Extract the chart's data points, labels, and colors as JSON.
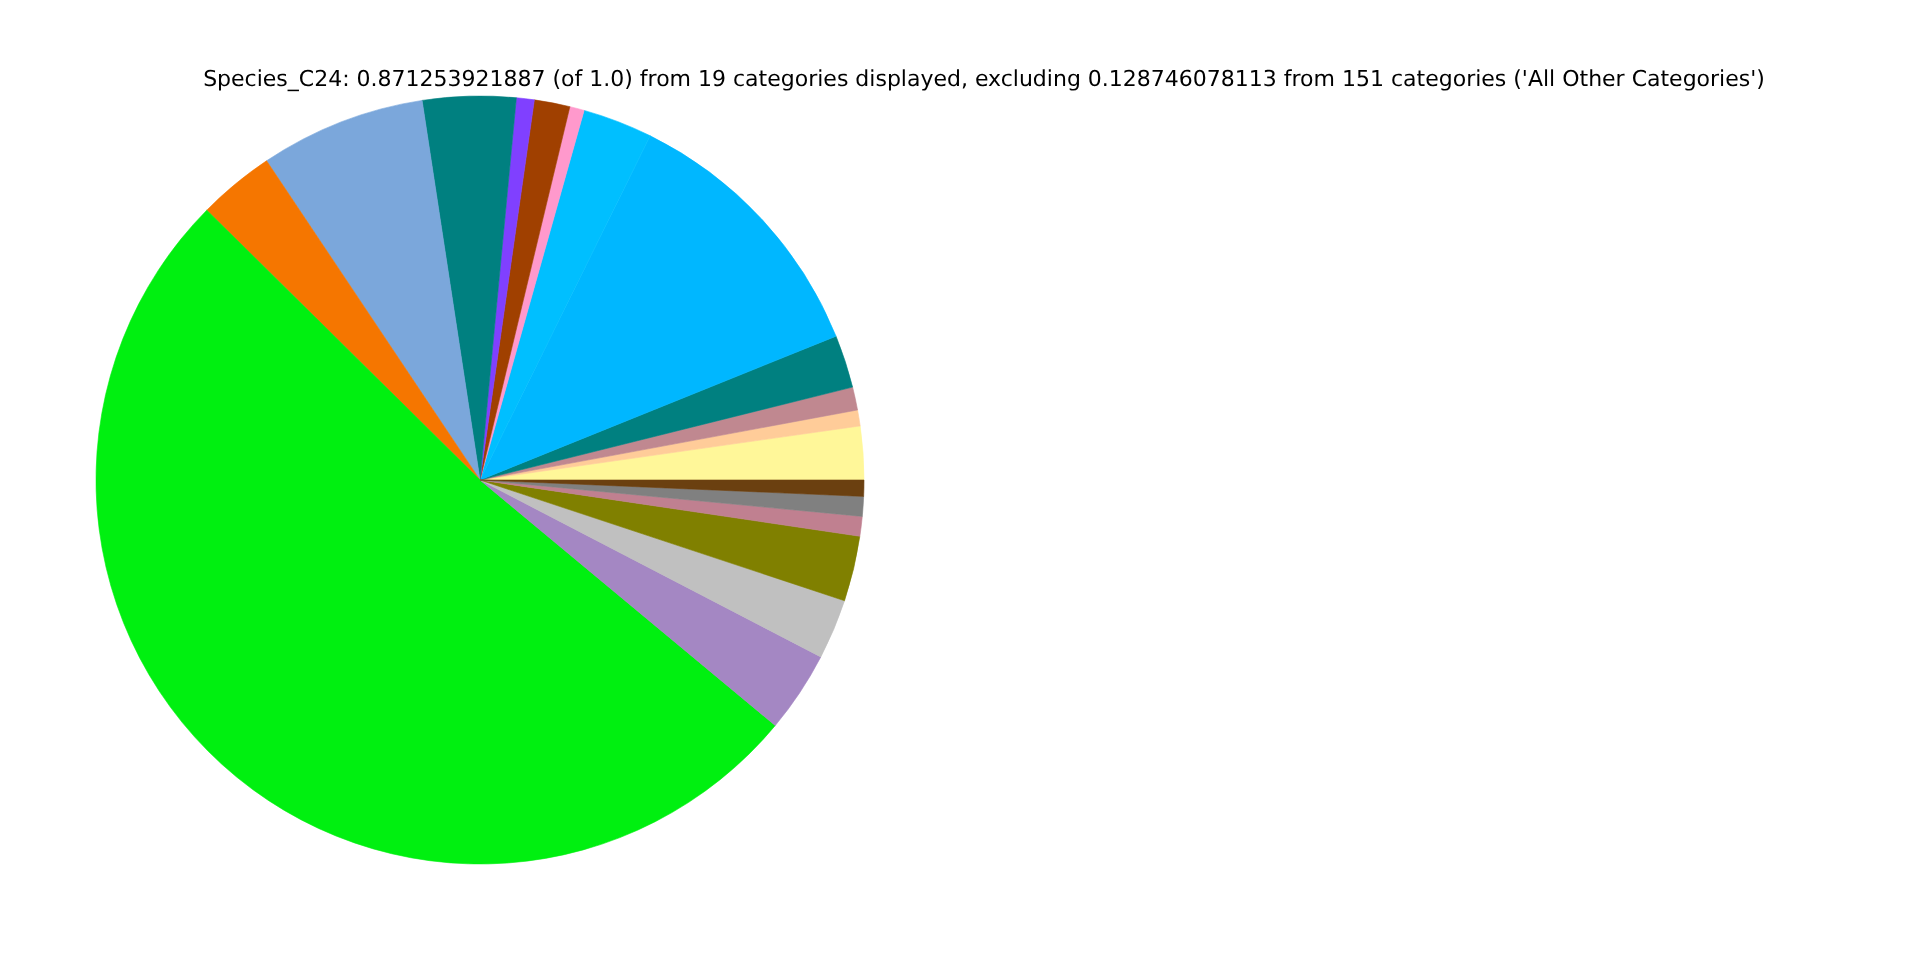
{
  "chart_data": {
    "type": "pie",
    "title": "Species_C24: 0.871253921887 (of 1.0) from 19 categories displayed, excluding 0.128746078113 from 151 categories ('All Other Categories')",
    "categories": [
      null,
      null,
      null,
      null,
      null,
      null,
      null,
      null,
      null,
      null,
      null,
      null,
      null,
      null,
      null,
      null,
      null,
      null,
      null
    ],
    "values": [
      2.25,
      0.67,
      0.97,
      2.22,
      11.58,
      2.94,
      0.61,
      1.5,
      0.75,
      3.92,
      6.97,
      3.22,
      51.36,
      3.42,
      2.53,
      2.75,
      0.83,
      0.83,
      0.68
    ],
    "colors": [
      "#fff799",
      "#ffcc99",
      "#c08890",
      "#008080",
      "#00b7ff",
      "#00bfff",
      "#ff99cc",
      "#a04000",
      "#8040ff",
      "#008080",
      "#7ba7db",
      "#f57600",
      "#00f010",
      "#a487c3",
      "#c0c0c0",
      "#808000",
      "#c08090",
      "#808080",
      "#6b4010"
    ]
  }
}
